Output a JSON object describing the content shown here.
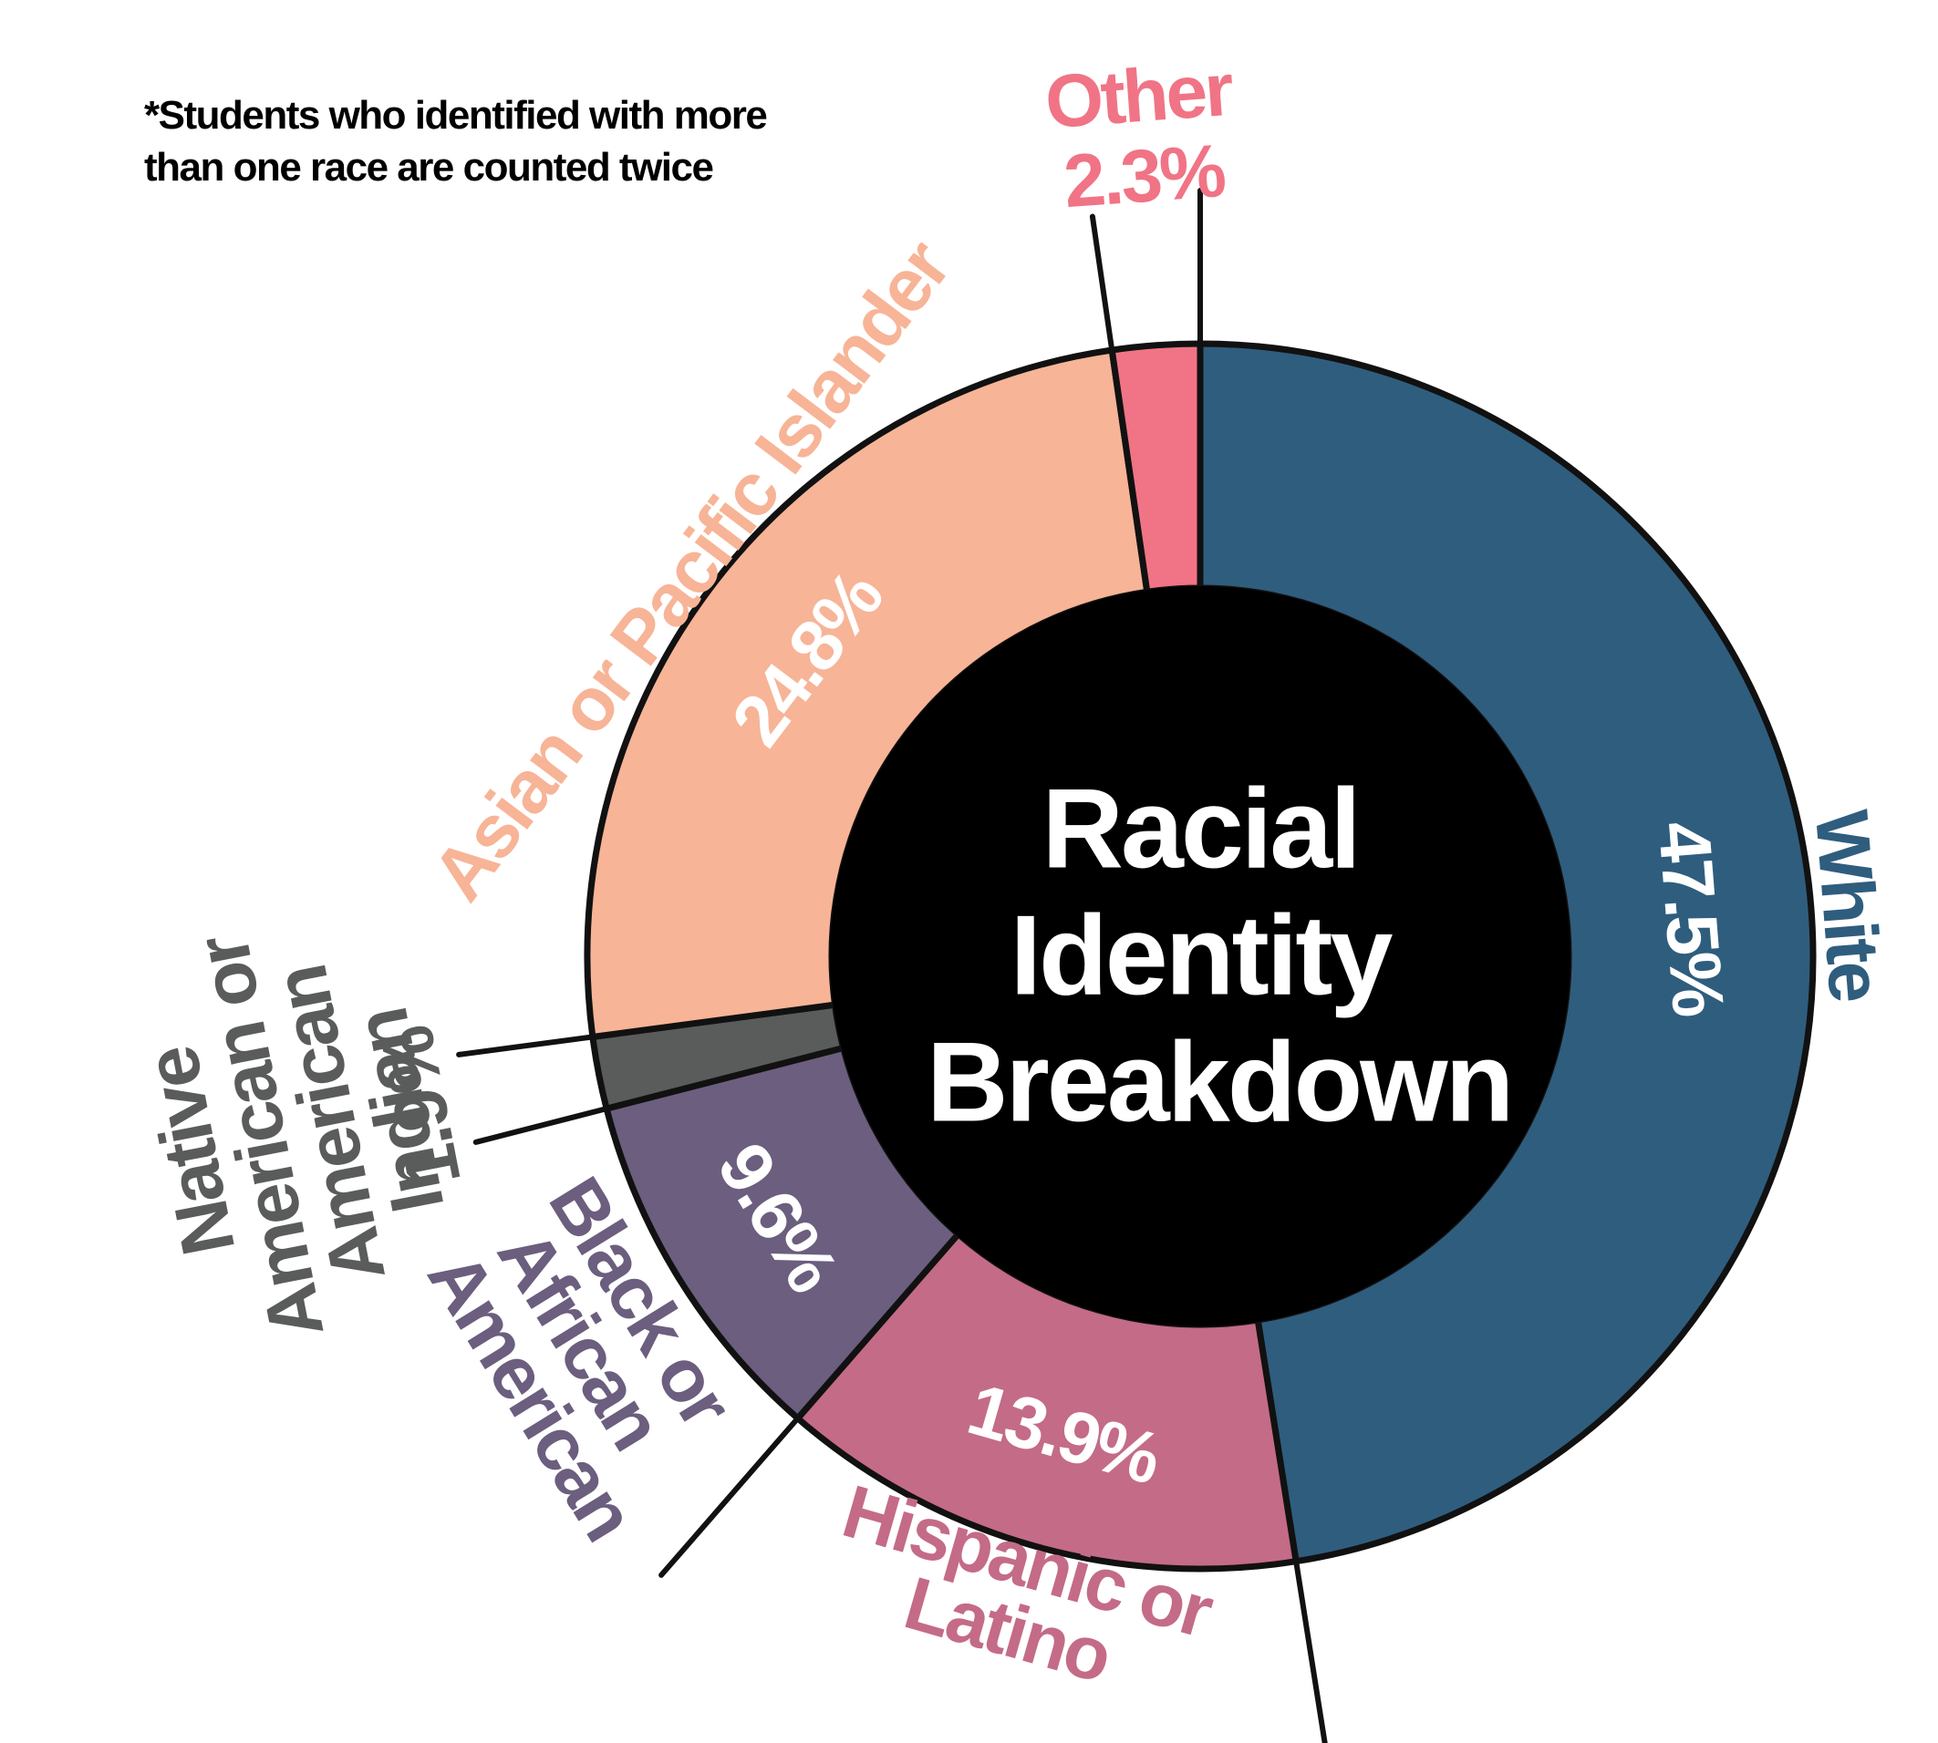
{
  "chart_data": {
    "type": "donut",
    "title": "Racial Identity Breakdown",
    "note": "*Students who identified with more than one race are counted twice",
    "categories": [
      "White",
      "Hispanic or Latino",
      "Black or African American",
      "Native American or American Indian",
      "Asian or Pacific Islander",
      "Other"
    ],
    "values": [
      47.5,
      13.9,
      9.6,
      1.9,
      24.8,
      2.3
    ],
    "value_labels": [
      "47.5%",
      "13.9%",
      "9.6%",
      "1.9%",
      "24.8%",
      "2.3%"
    ],
    "colors": [
      "#2f5d7e",
      "#c46b87",
      "#6b5e7e",
      "#5a5c5b",
      "#f7b497",
      "#f07485"
    ]
  }
}
